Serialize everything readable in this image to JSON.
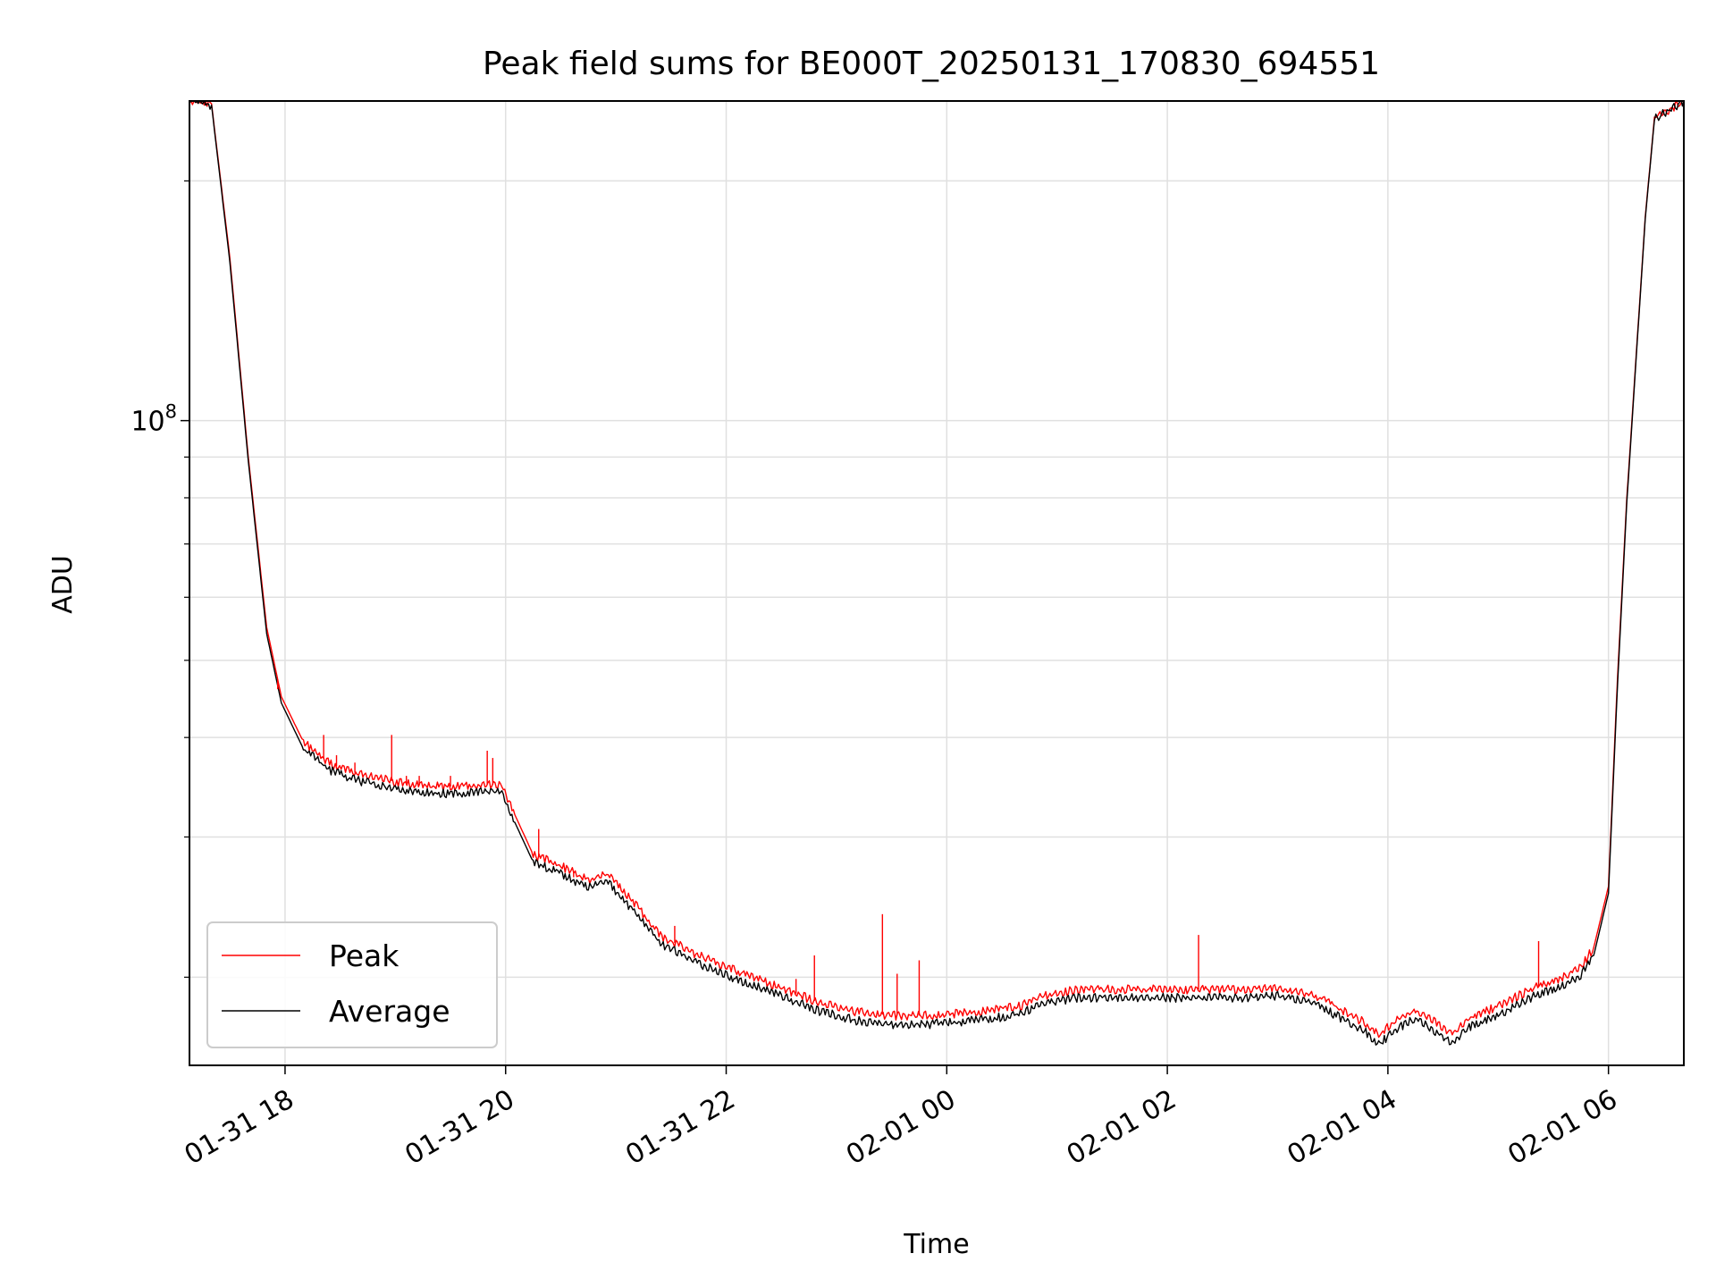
{
  "chart_data": {
    "type": "line",
    "title": "Peak field sums for BE000T_20250131_170830_694551",
    "xlabel": "Time",
    "ylabel": "ADU",
    "x_axis": {
      "kind": "datetime",
      "range": [
        "2025-01-31 17:08",
        "2025-02-01 06:41"
      ],
      "ticks": [
        "2025-01-31 18:00",
        "2025-01-31 20:00",
        "2025-01-31 22:00",
        "2025-02-01 00:00",
        "2025-02-01 02:00",
        "2025-02-01 04:00",
        "2025-02-01 06:00"
      ],
      "tick_labels": [
        "01-31 18",
        "01-31 20",
        "01-31 22",
        "02-01 00",
        "02-01 02",
        "02-01 04",
        "02-01 06"
      ],
      "tick_rotation_deg": 30
    },
    "y_axis": {
      "scale": "log",
      "range": [
        15500000,
        252000000
      ],
      "major_tick_label": {
        "base": "10",
        "exp": "8",
        "value": 100000000
      },
      "minor_ticks": [
        20000000,
        30000000,
        40000000,
        50000000,
        60000000,
        70000000,
        80000000,
        90000000,
        200000000
      ]
    },
    "grid": true,
    "legend": {
      "position": "lower-left",
      "entries": [
        "Peak",
        "Average"
      ]
    },
    "colors": {
      "peak": "#ff0000",
      "average": "#000000"
    },
    "series": [
      {
        "name": "Peak",
        "color": "#ff0000",
        "x": [
          "2025-01-31 17:08",
          "2025-01-31 17:20",
          "2025-01-31 17:30",
          "2025-01-31 17:40",
          "2025-01-31 17:50",
          "2025-01-31 17:58",
          "2025-01-31 18:10",
          "2025-01-31 18:25",
          "2025-01-31 18:40",
          "2025-01-31 19:00",
          "2025-01-31 19:15",
          "2025-01-31 19:30",
          "2025-01-31 19:45",
          "2025-01-31 19:58",
          "2025-01-31 20:05",
          "2025-01-31 20:15",
          "2025-01-31 20:30",
          "2025-01-31 20:45",
          "2025-01-31 20:55",
          "2025-01-31 21:10",
          "2025-01-31 21:25",
          "2025-01-31 21:45",
          "2025-01-31 22:05",
          "2025-01-31 22:30",
          "2025-01-31 22:50",
          "2025-01-31 23:10",
          "2025-01-31 23:30",
          "2025-01-31 23:50",
          "2025-02-01 00:15",
          "2025-02-01 00:40",
          "2025-02-01 00:50",
          "2025-02-01 01:10",
          "2025-02-01 01:40",
          "2025-02-01 02:10",
          "2025-02-01 02:40",
          "2025-02-01 03:00",
          "2025-02-01 03:20",
          "2025-02-01 03:35",
          "2025-02-01 03:48",
          "2025-02-01 03:55",
          "2025-02-01 04:05",
          "2025-02-01 04:15",
          "2025-02-01 04:25",
          "2025-02-01 04:35",
          "2025-02-01 04:45",
          "2025-02-01 05:00",
          "2025-02-01 05:20",
          "2025-02-01 05:35",
          "2025-02-01 05:45",
          "2025-02-01 05:52",
          "2025-02-01 06:00",
          "2025-02-01 06:05",
          "2025-02-01 06:10",
          "2025-02-01 06:15",
          "2025-02-01 06:20",
          "2025-02-01 06:25",
          "2025-02-01 06:41"
        ],
        "values": [
          252000000,
          250000000,
          160000000,
          90000000,
          55000000,
          45000000,
          39500000,
          37000000,
          36000000,
          35200000,
          34800000,
          34700000,
          34900000,
          34900000,
          32000000,
          28500000,
          27600000,
          26500000,
          27000000,
          24800000,
          22500000,
          21300000,
          20400000,
          19400000,
          18600000,
          18100000,
          17900000,
          17900000,
          18100000,
          18400000,
          18900000,
          19300000,
          19300000,
          19300000,
          19300000,
          19400000,
          19000000,
          18200000,
          17500000,
          16900000,
          17700000,
          18200000,
          17600000,
          17000000,
          17800000,
          18400000,
          19400000,
          20000000,
          20600000,
          21800000,
          26000000,
          48000000,
          80000000,
          120000000,
          180000000,
          240000000,
          252000000
        ]
      },
      {
        "name": "Average",
        "color": "#000000",
        "x": [
          "2025-01-31 17:08",
          "2025-01-31 17:20",
          "2025-01-31 17:30",
          "2025-01-31 17:40",
          "2025-01-31 17:50",
          "2025-01-31 17:58",
          "2025-01-31 18:10",
          "2025-01-31 18:25",
          "2025-01-31 18:40",
          "2025-01-31 19:00",
          "2025-01-31 19:15",
          "2025-01-31 19:30",
          "2025-01-31 19:45",
          "2025-01-31 19:58",
          "2025-01-31 20:05",
          "2025-01-31 20:15",
          "2025-01-31 20:30",
          "2025-01-31 20:45",
          "2025-01-31 20:55",
          "2025-01-31 21:10",
          "2025-01-31 21:25",
          "2025-01-31 21:45",
          "2025-01-31 22:05",
          "2025-01-31 22:30",
          "2025-01-31 22:50",
          "2025-01-31 23:10",
          "2025-01-31 23:30",
          "2025-01-31 23:50",
          "2025-02-01 00:15",
          "2025-02-01 00:40",
          "2025-02-01 00:50",
          "2025-02-01 01:10",
          "2025-02-01 01:40",
          "2025-02-01 02:10",
          "2025-02-01 02:40",
          "2025-02-01 03:00",
          "2025-02-01 03:20",
          "2025-02-01 03:35",
          "2025-02-01 03:48",
          "2025-02-01 03:55",
          "2025-02-01 04:05",
          "2025-02-01 04:15",
          "2025-02-01 04:25",
          "2025-02-01 04:35",
          "2025-02-01 04:45",
          "2025-02-01 05:00",
          "2025-02-01 05:20",
          "2025-02-01 05:35",
          "2025-02-01 05:45",
          "2025-02-01 05:52",
          "2025-02-01 06:00",
          "2025-02-01 06:05",
          "2025-02-01 06:10",
          "2025-02-01 06:15",
          "2025-02-01 06:20",
          "2025-02-01 06:25",
          "2025-02-01 06:41"
        ],
        "values": [
          252000000,
          249000000,
          158000000,
          89000000,
          54000000,
          44200000,
          38700000,
          36300000,
          35300000,
          34500000,
          34100000,
          34000000,
          34200000,
          34200000,
          31300000,
          27900000,
          27000000,
          25900000,
          26400000,
          24200000,
          22000000,
          20800000,
          19900000,
          18950000,
          18150000,
          17650000,
          17450000,
          17450000,
          17650000,
          17950000,
          18450000,
          18850000,
          18850000,
          18850000,
          18850000,
          18950000,
          18550000,
          17750000,
          17050000,
          16450000,
          17250000,
          17750000,
          17150000,
          16550000,
          17350000,
          17950000,
          18950000,
          19500000,
          20100000,
          21300000,
          25500000,
          47000000,
          79000000,
          119000000,
          179000000,
          239000000,
          252000000
        ]
      }
    ],
    "spikes": {
      "series": "Peak",
      "x": [
        "2025-01-31 17:56",
        "2025-01-31 18:21",
        "2025-01-31 18:28",
        "2025-01-31 18:38",
        "2025-01-31 18:58",
        "2025-01-31 19:06",
        "2025-01-31 19:13",
        "2025-01-31 19:30",
        "2025-01-31 19:50",
        "2025-01-31 19:53",
        "2025-01-31 20:18",
        "2025-01-31 20:37",
        "2025-01-31 21:02",
        "2025-01-31 21:32",
        "2025-01-31 22:38",
        "2025-01-31 22:48",
        "2025-01-31 23:25",
        "2025-01-31 23:33",
        "2025-01-31 23:45",
        "2025-02-01 02:17",
        "2025-02-01 05:22"
      ],
      "values": [
        46000000,
        40300000,
        38000000,
        37200000,
        40300000,
        35800000,
        35800000,
        35800000,
        38500000,
        37700000,
        30700000,
        26700000,
        25900000,
        23200000,
        19900000,
        21300000,
        24000000,
        20200000,
        21000000,
        22600000,
        22200000
      ]
    }
  }
}
